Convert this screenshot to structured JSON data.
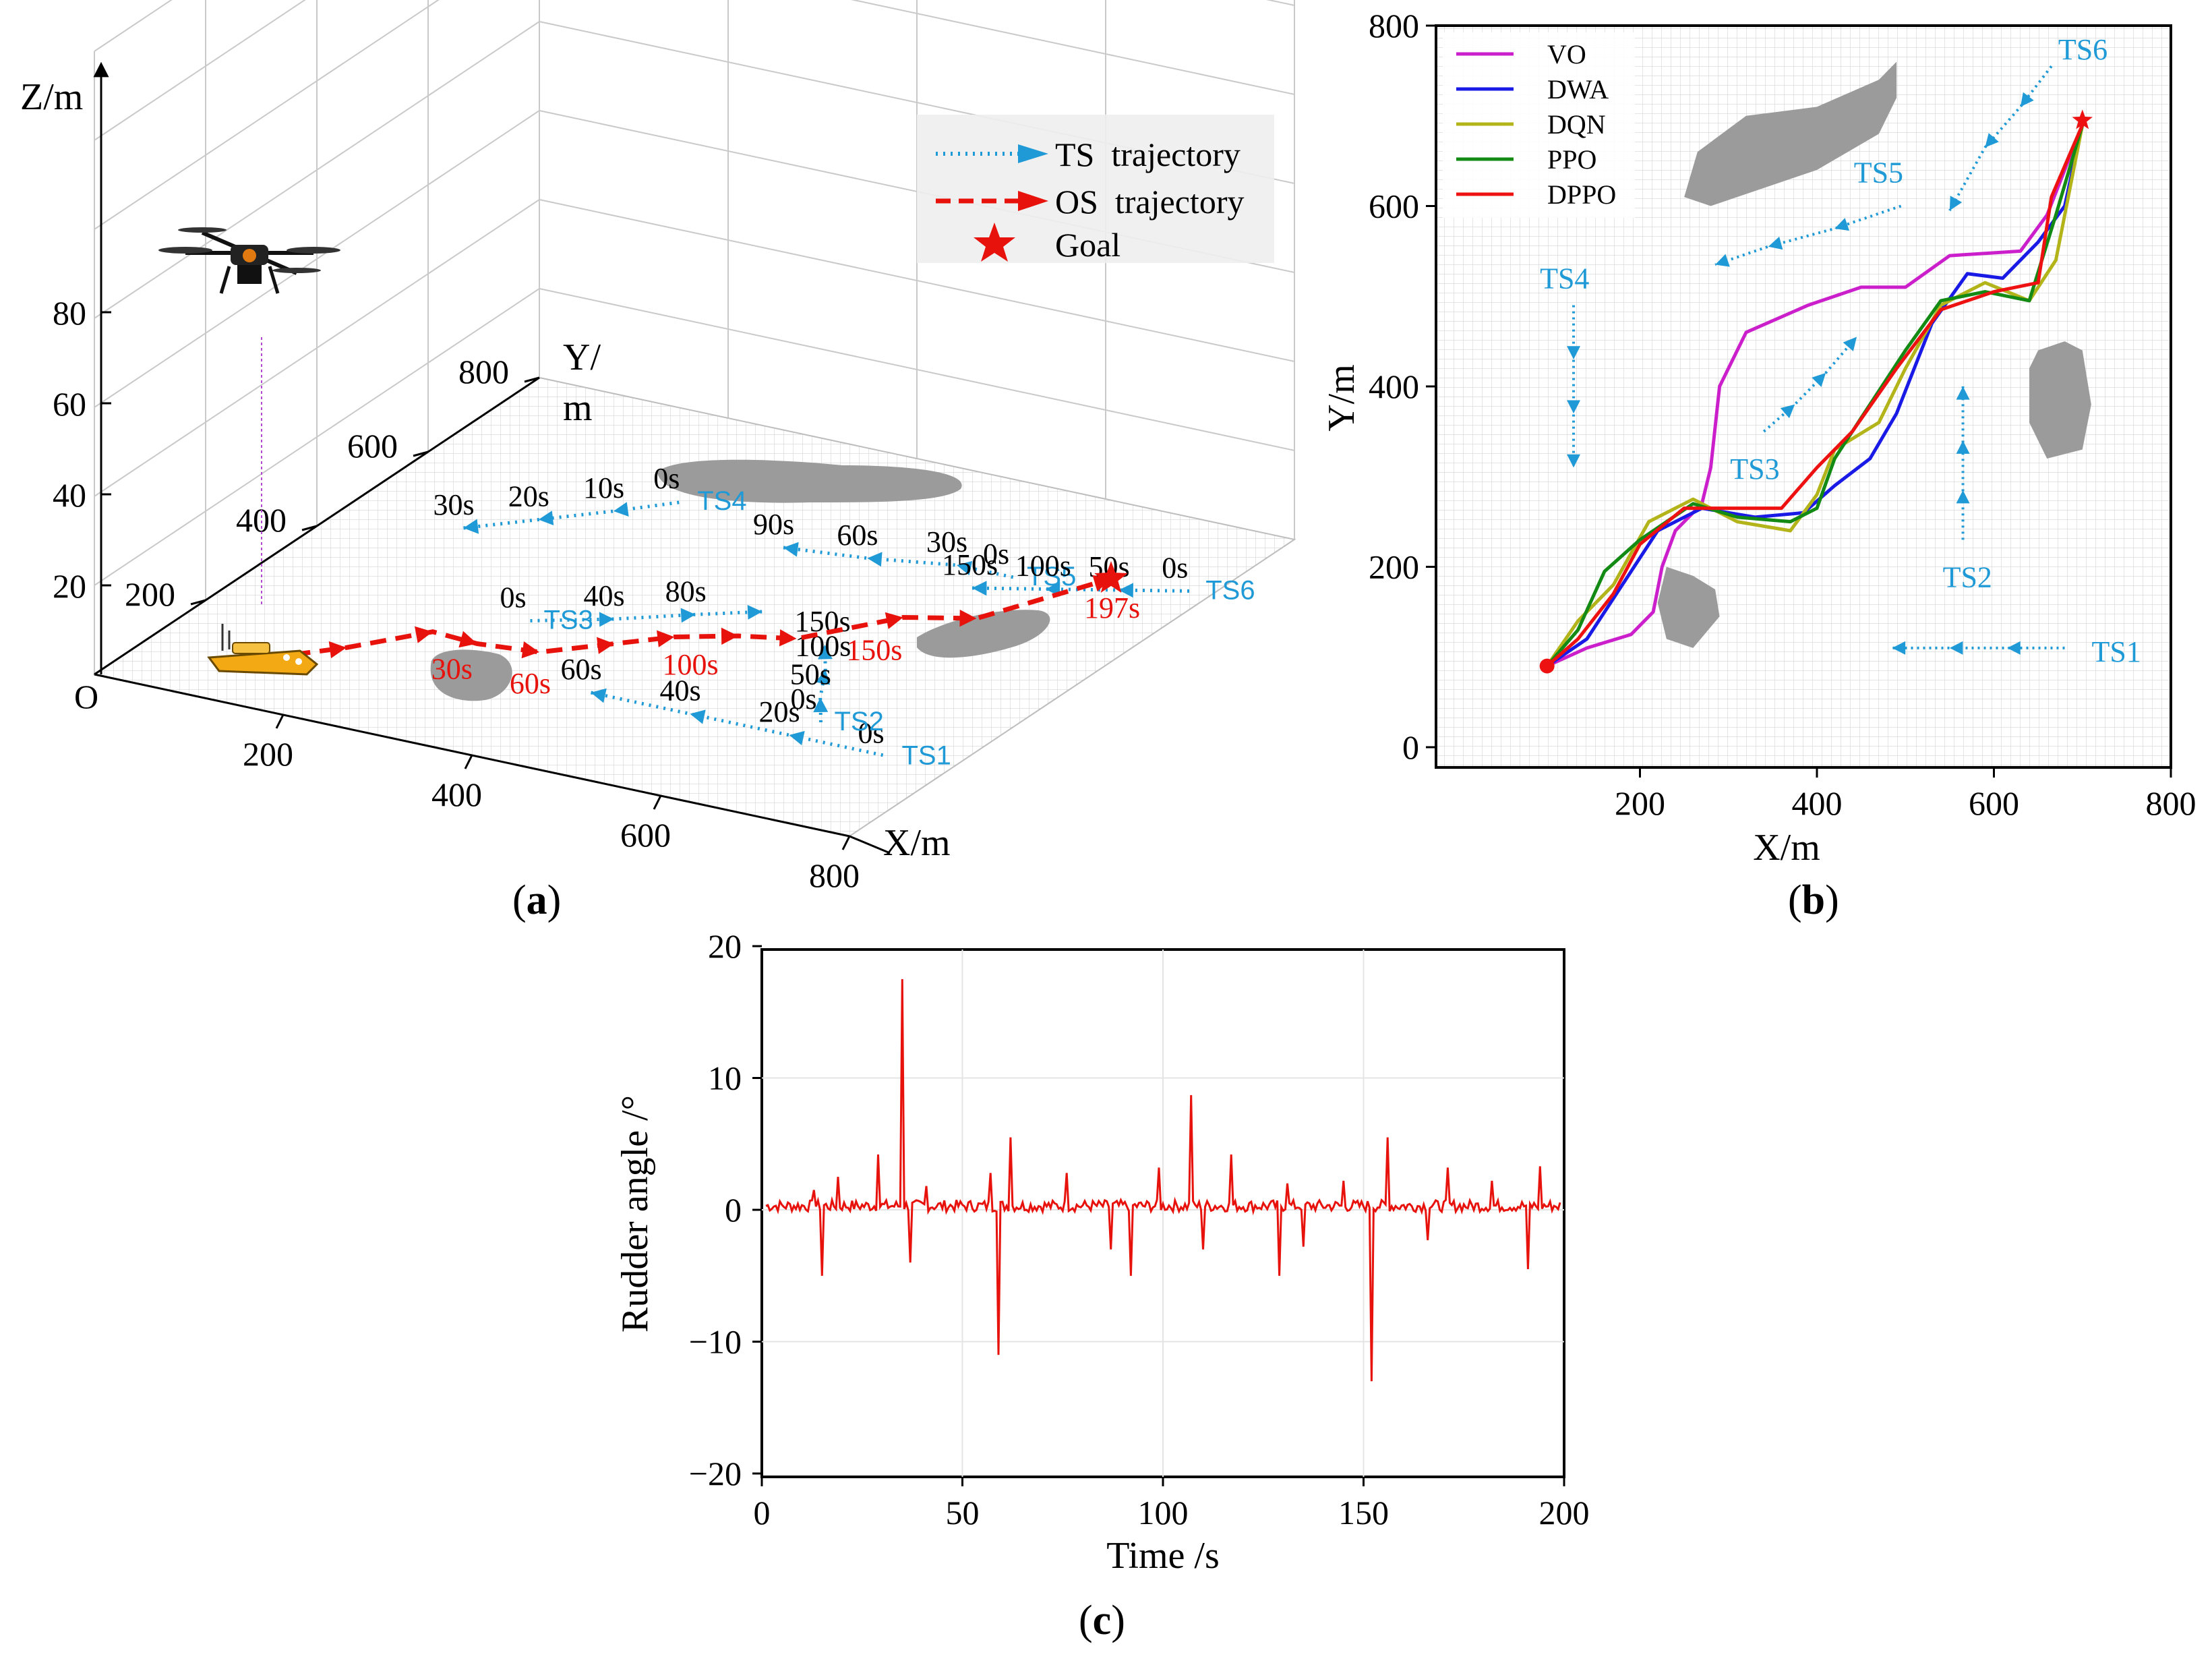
{
  "panel_labels": {
    "a": "a",
    "b": "b",
    "c": "c"
  },
  "chart_data": [
    {
      "type": "line",
      "panel": "a",
      "view": "3d-perspective",
      "axes": {
        "xlabel": "X/m",
        "ylabel_line1": "Y/",
        "ylabel_line2": "m",
        "zlabel": "Z/m",
        "origin_label": "O",
        "xticks": [
          "200",
          "400",
          "600",
          "800"
        ],
        "yticks": [
          "200",
          "400",
          "600",
          "800"
        ],
        "zticks": [
          "20",
          "40",
          "60",
          "80"
        ],
        "xlim": [
          0,
          800
        ],
        "ylim": [
          0,
          800
        ],
        "zlim": [
          0,
          100
        ]
      },
      "legend": {
        "position": "top-right",
        "entries": [
          {
            "label": "TS  trajectory",
            "color": "#1f9ad6",
            "style": "dotted-arrow"
          },
          {
            "label": "OS  trajectory",
            "color": "#e8120c",
            "style": "dashed-arrow"
          },
          {
            "label": "Goal",
            "color": "#e8120c",
            "style": "star"
          }
        ]
      },
      "os_trajectory": {
        "color": "#e8120c",
        "points": [
          [
            120,
            110
          ],
          [
            170,
            165
          ],
          [
            220,
            235
          ],
          [
            270,
            230
          ],
          [
            330,
            240
          ],
          [
            380,
            290
          ],
          [
            420,
            330
          ],
          [
            470,
            360
          ],
          [
            520,
            380
          ],
          [
            580,
            470
          ],
          [
            640,
            500
          ],
          [
            700,
            640
          ]
        ],
        "time_labels": [
          "30s",
          "60s",
          "100s",
          "150s",
          "197s"
        ],
        "time_points": [
          [
            250,
            230
          ],
          [
            330,
            235
          ],
          [
            430,
            340
          ],
          [
            560,
            450
          ],
          [
            700,
            640
          ]
        ]
      },
      "goal": {
        "x": 700,
        "y": 640
      },
      "ts_trajectories": [
        {
          "name": "TS1",
          "points": [
            [
              420,
              180
            ],
            [
              525,
              180
            ],
            [
              630,
              180
            ],
            [
              735,
              180
            ]
          ],
          "times": [
            "60s",
            "40s",
            "20s",
            "0s"
          ]
        },
        {
          "name": "TS2",
          "points": [
            [
              640,
              220
            ],
            [
              610,
              270
            ],
            [
              580,
              330
            ],
            [
              550,
              380
            ]
          ],
          "times": [
            "0s",
            "50s",
            "100s",
            "150s"
          ]
        },
        {
          "name": "TS3",
          "points": [
            [
              285,
              300
            ],
            [
              350,
              340
            ],
            [
              410,
              385
            ],
            [
              460,
              420
            ]
          ],
          "times": [
            "0s",
            "40s",
            "80s"
          ]
        },
        {
          "name": "TS4",
          "points": [
            [
              120,
              460
            ],
            [
              170,
              510
            ],
            [
              220,
              560
            ],
            [
              265,
              610
            ]
          ],
          "times": [
            "30s",
            "20s",
            "10s",
            "0s"
          ]
        },
        {
          "name": "TS5",
          "points": [
            [
              400,
              560
            ],
            [
              480,
              575
            ],
            [
              560,
              600
            ],
            [
              620,
              600
            ]
          ],
          "times": [
            "90s",
            "60s",
            "30s",
            "0s"
          ]
        },
        {
          "name": "TS6",
          "points": [
            [
              600,
              560
            ],
            [
              660,
              590
            ],
            [
              720,
              620
            ],
            [
              780,
              650
            ]
          ],
          "times": [
            "150s",
            "100s",
            "50s",
            "0s"
          ]
        }
      ]
    },
    {
      "type": "line",
      "panel": "b",
      "xlabel": "X/m",
      "ylabel": "Y/m",
      "xlim": [
        0,
        800
      ],
      "ylim": [
        0,
        800
      ],
      "xticks": [
        "200",
        "400",
        "600",
        "800"
      ],
      "yticks": [
        "0",
        "200",
        "400",
        "600",
        "800"
      ],
      "grid": true,
      "legend_position": "top-left",
      "series": [
        {
          "name": "VO",
          "color": "#cc1fcc",
          "points": [
            [
              95,
              90
            ],
            [
              140,
              110
            ],
            [
              190,
              125
            ],
            [
              215,
              150
            ],
            [
              225,
              200
            ],
            [
              240,
              240
            ],
            [
              270,
              270
            ],
            [
              280,
              310
            ],
            [
              290,
              400
            ],
            [
              320,
              460
            ],
            [
              390,
              490
            ],
            [
              450,
              510
            ],
            [
              500,
              510
            ],
            [
              550,
              545
            ],
            [
              630,
              550
            ],
            [
              660,
              590
            ],
            [
              700,
              690
            ]
          ]
        },
        {
          "name": "DWA",
          "color": "#1a1ae6",
          "points": [
            [
              95,
              90
            ],
            [
              140,
              120
            ],
            [
              180,
              180
            ],
            [
              220,
              240
            ],
            [
              270,
              265
            ],
            [
              330,
              255
            ],
            [
              385,
              260
            ],
            [
              420,
              290
            ],
            [
              460,
              320
            ],
            [
              490,
              370
            ],
            [
              530,
              470
            ],
            [
              570,
              525
            ],
            [
              610,
              520
            ],
            [
              650,
              560
            ],
            [
              680,
              600
            ],
            [
              700,
              690
            ]
          ]
        },
        {
          "name": "DQN",
          "color": "#b3b31a",
          "points": [
            [
              95,
              90
            ],
            [
              130,
              140
            ],
            [
              170,
              180
            ],
            [
              210,
              250
            ],
            [
              260,
              275
            ],
            [
              310,
              250
            ],
            [
              370,
              240
            ],
            [
              400,
              280
            ],
            [
              420,
              330
            ],
            [
              470,
              360
            ],
            [
              500,
              420
            ],
            [
              540,
              490
            ],
            [
              590,
              515
            ],
            [
              640,
              495
            ],
            [
              670,
              540
            ],
            [
              700,
              690
            ]
          ]
        },
        {
          "name": "PPO",
          "color": "#138a13",
          "points": [
            [
              95,
              90
            ],
            [
              130,
              130
            ],
            [
              160,
              195
            ],
            [
              200,
              230
            ],
            [
              260,
              270
            ],
            [
              310,
              255
            ],
            [
              370,
              250
            ],
            [
              400,
              265
            ],
            [
              420,
              320
            ],
            [
              450,
              365
            ],
            [
              500,
              440
            ],
            [
              540,
              495
            ],
            [
              590,
              505
            ],
            [
              640,
              495
            ],
            [
              670,
              590
            ],
            [
              700,
              690
            ]
          ]
        },
        {
          "name": "DPPO",
          "color": "#ee1111",
          "points": [
            [
              95,
              90
            ],
            [
              130,
              120
            ],
            [
              170,
              170
            ],
            [
              200,
              225
            ],
            [
              250,
              265
            ],
            [
              310,
              265
            ],
            [
              360,
              265
            ],
            [
              400,
              310
            ],
            [
              440,
              350
            ],
            [
              490,
              420
            ],
            [
              540,
              485
            ],
            [
              600,
              505
            ],
            [
              650,
              515
            ],
            [
              665,
              610
            ],
            [
              700,
              690
            ]
          ]
        }
      ],
      "start": {
        "x": 95,
        "y": 90
      },
      "goal": {
        "x": 700,
        "y": 695
      },
      "target_ships": [
        {
          "name": "TS1",
          "points": [
            [
              680,
              110
            ],
            [
              615,
              110
            ],
            [
              550,
              110
            ],
            [
              485,
              110
            ]
          ]
        },
        {
          "name": "TS2",
          "points": [
            [
              565,
              230
            ],
            [
              565,
              285
            ],
            [
              565,
              340
            ],
            [
              565,
              400
            ]
          ]
        },
        {
          "name": "TS3",
          "points": [
            [
              340,
              350
            ],
            [
              375,
              380
            ],
            [
              410,
              415
            ],
            [
              445,
              455
            ]
          ]
        },
        {
          "name": "TS4",
          "points": [
            [
              125,
              490
            ],
            [
              125,
              430
            ],
            [
              125,
              370
            ],
            [
              125,
              310
            ]
          ]
        },
        {
          "name": "TS5",
          "points": [
            [
              495,
              600
            ],
            [
              420,
              575
            ],
            [
              345,
              555
            ],
            [
              285,
              535
            ]
          ]
        },
        {
          "name": "TS6",
          "points": [
            [
              665,
              755
            ],
            [
              630,
              710
            ],
            [
              590,
              665
            ],
            [
              550,
              595
            ]
          ]
        }
      ]
    },
    {
      "type": "line",
      "panel": "c",
      "xlabel": "Time /s",
      "ylabel": "Rudder angle /°",
      "xlim": [
        0,
        200
      ],
      "ylim": [
        -20,
        20
      ],
      "xticks": [
        "0",
        "50",
        "100",
        "150",
        "200"
      ],
      "yticks": [
        "20",
        "10",
        "0",
        "−10",
        "−20"
      ],
      "grid": true,
      "series": [
        {
          "color": "#e8120c",
          "base": 0.3,
          "spikes": [
            [
              13,
              1.5
            ],
            [
              15,
              -5
            ],
            [
              19,
              2.5
            ],
            [
              29,
              4.2
            ],
            [
              35,
              17.5
            ],
            [
              37,
              -4
            ],
            [
              41,
              1.8
            ],
            [
              57,
              2.8
            ],
            [
              59,
              -11
            ],
            [
              62,
              5.5
            ],
            [
              76,
              2.8
            ],
            [
              87,
              -3
            ],
            [
              92,
              -5
            ],
            [
              99,
              3.2
            ],
            [
              107,
              8.7
            ],
            [
              110,
              -3
            ],
            [
              117,
              4.2
            ],
            [
              129,
              -5
            ],
            [
              131,
              2
            ],
            [
              135,
              -2.8
            ],
            [
              145,
              2.2
            ],
            [
              152,
              -13
            ],
            [
              156,
              5.5
            ],
            [
              166,
              -2.3
            ],
            [
              171,
              3.2
            ],
            [
              182,
              2.2
            ],
            [
              191,
              -4.5
            ],
            [
              194,
              3.3
            ]
          ]
        }
      ]
    }
  ]
}
